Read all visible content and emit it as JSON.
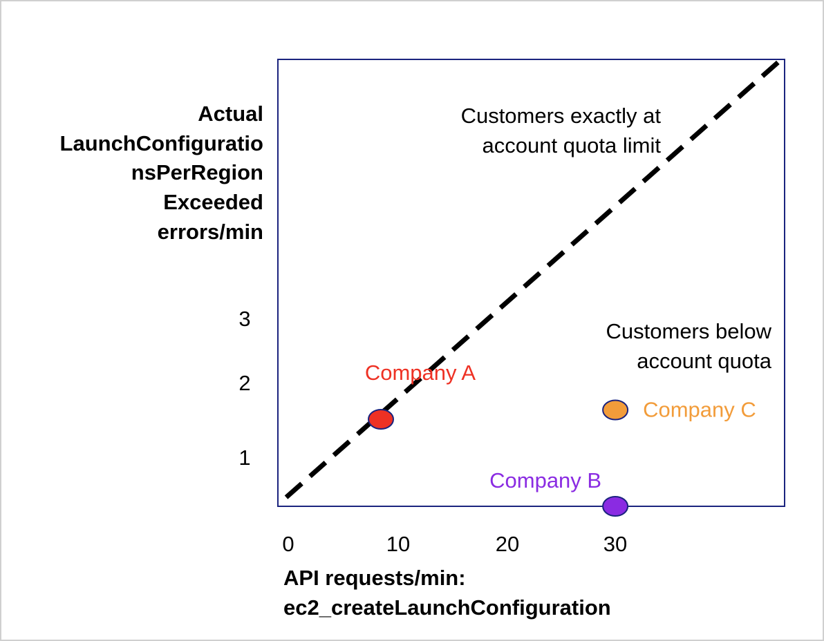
{
  "chart_data": {
    "type": "scatter",
    "ylabel_lines": [
      "Actual",
      "LaunchConfiguratio",
      "nsPerRegion",
      "Exceeded",
      "errors/min"
    ],
    "xlabel_lines": [
      "API requests/min:",
      "ec2_createLaunchConfiguration"
    ],
    "x_ticks": [
      "0",
      "10",
      "20",
      "30"
    ],
    "y_ticks": [
      "1",
      "2",
      "3"
    ],
    "points": [
      {
        "name": "Company A",
        "x": 8.5,
        "y": 1.4,
        "fill": "#ee3124",
        "label_color": "#ee3124"
      },
      {
        "name": "Company B",
        "x": 30,
        "y": 0,
        "fill": "#8a2be2",
        "label_color": "#8a2be2"
      },
      {
        "name": "Company C",
        "x": 30,
        "y": 1.55,
        "fill": "#f29c3a",
        "label_color": "#f29c3a"
      }
    ],
    "annotations": {
      "diagonal": [
        "Customers exactly at",
        "account quota limit"
      ],
      "below": [
        "Customers below",
        "account quota"
      ]
    },
    "reference_line": {
      "style": "dashed",
      "color": "#000000"
    },
    "axis_color": "#1a237e",
    "grid": false
  }
}
